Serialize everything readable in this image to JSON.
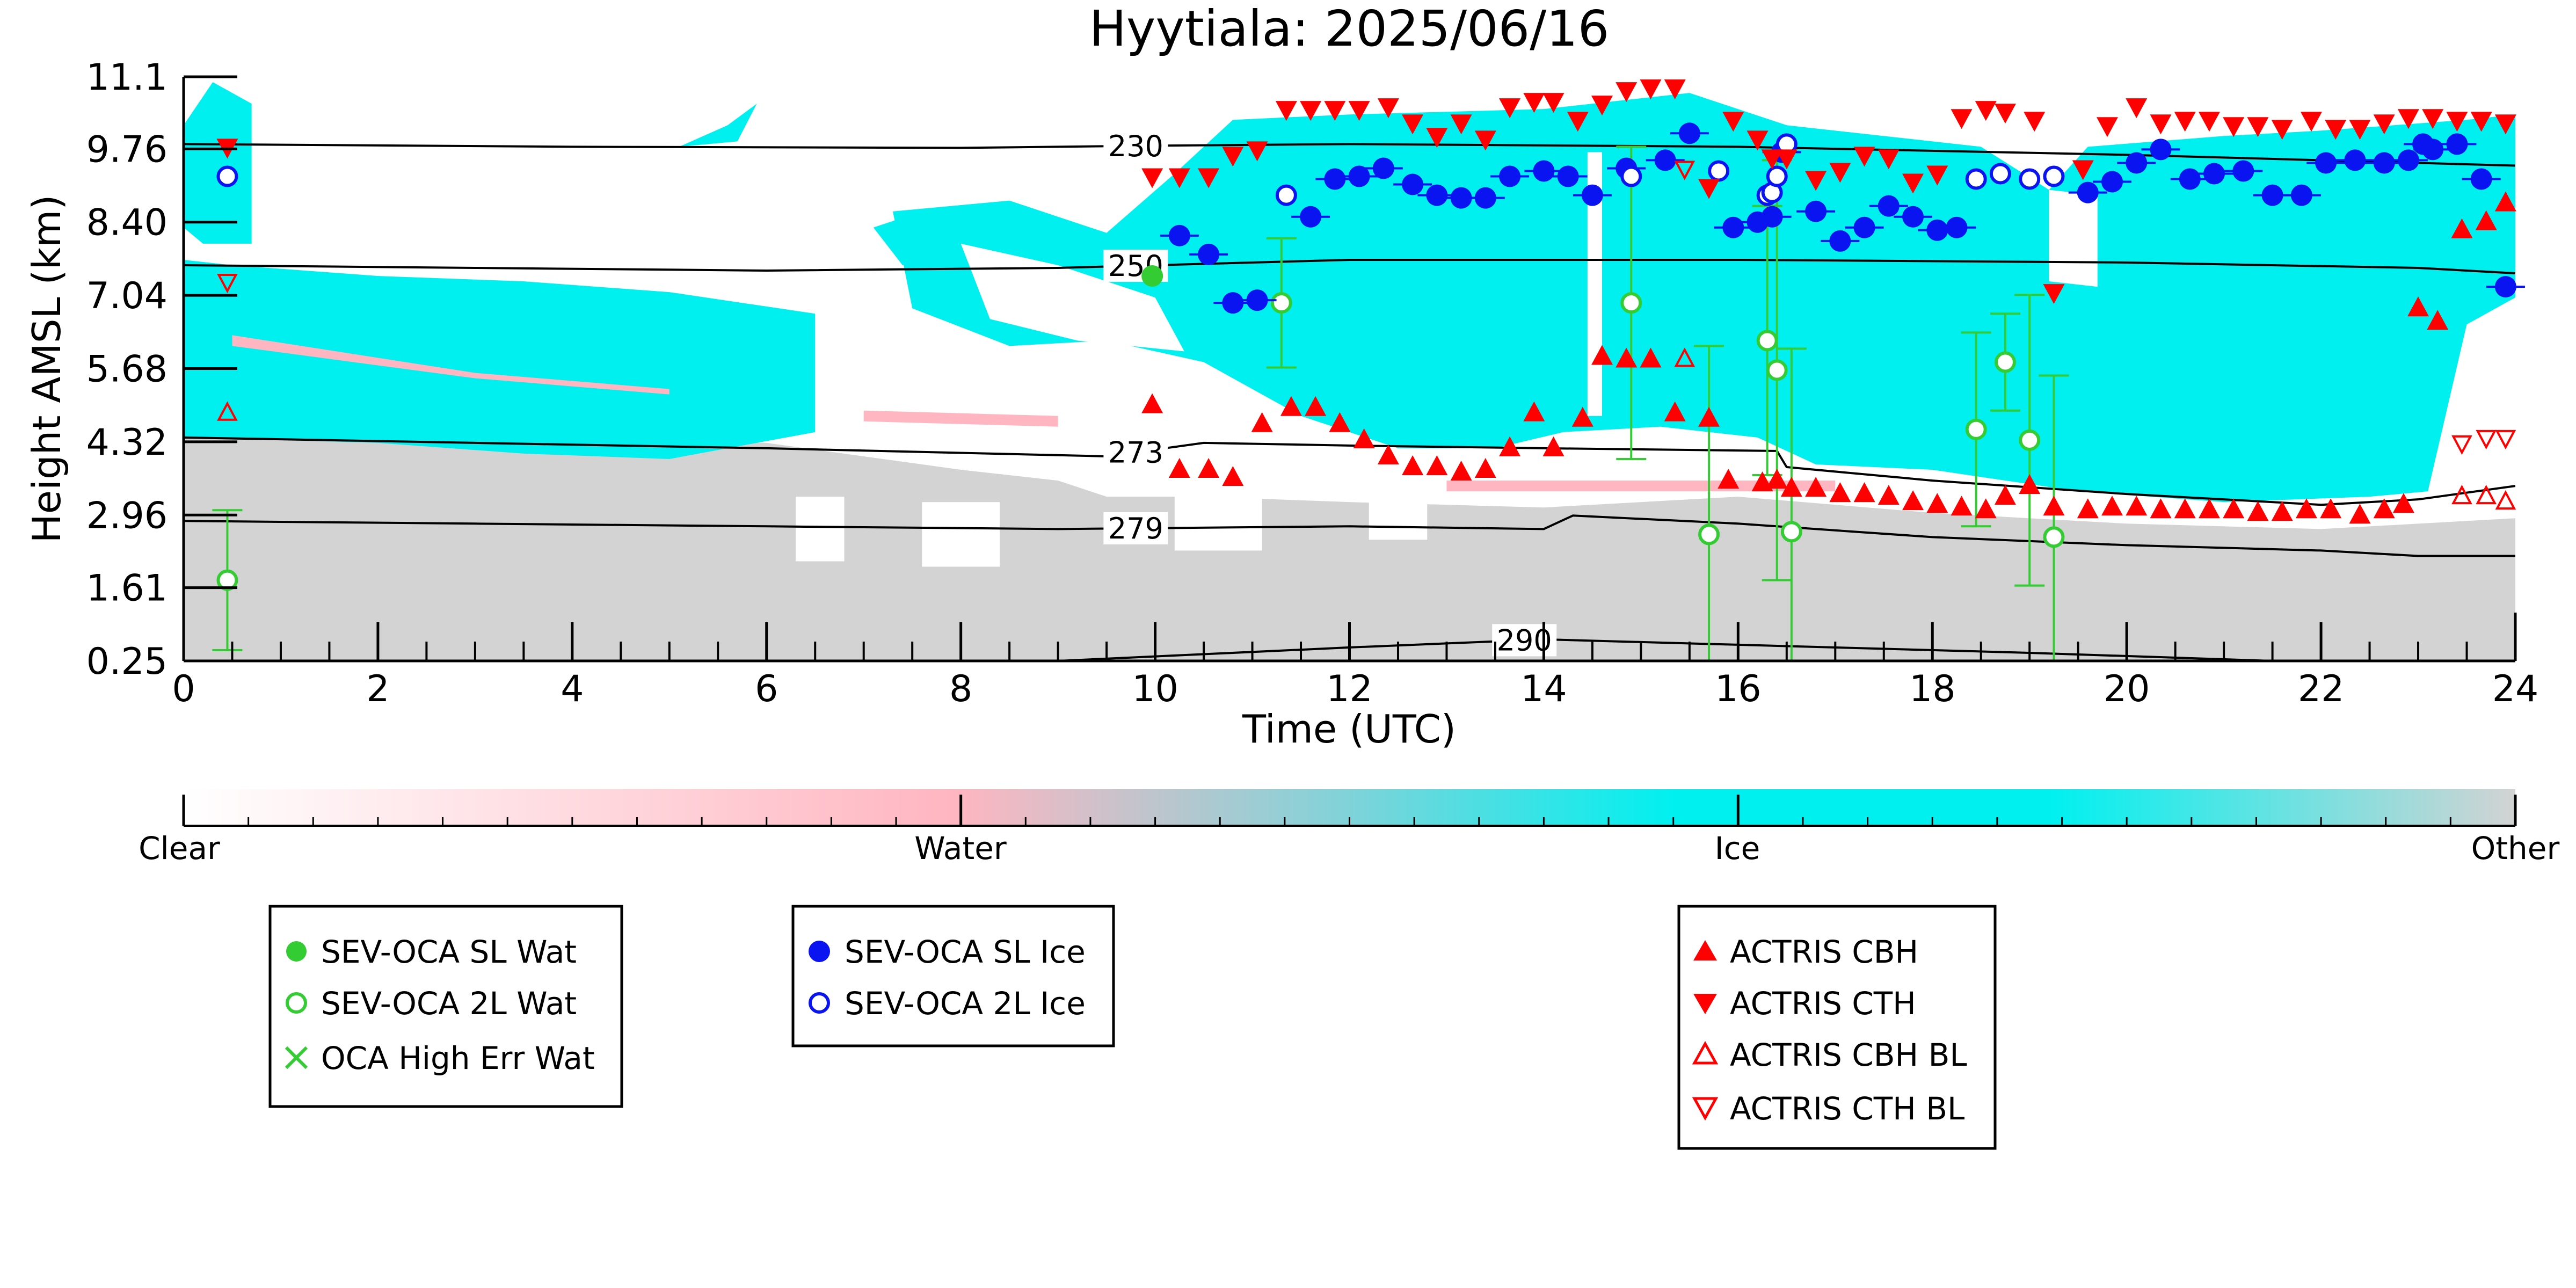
{
  "chart_data": {
    "type": "scatter",
    "title": "Hyytiala: 2025/06/16",
    "xlabel": "Time (UTC)",
    "ylabel": "Height AMSL (km)",
    "xlim": [
      0,
      24
    ],
    "ylim": [
      0.25,
      11.1
    ],
    "x_ticks": [
      0,
      2,
      4,
      6,
      8,
      10,
      12,
      14,
      16,
      18,
      20,
      22,
      24
    ],
    "x_tick_labels": [
      "0",
      "2",
      "4",
      "6",
      "8",
      "10",
      "12",
      "14",
      "16",
      "18",
      "20",
      "22",
      "24"
    ],
    "y_ticks": [
      0.25,
      1.61,
      2.96,
      4.32,
      5.68,
      7.04,
      8.4,
      9.76,
      11.1
    ],
    "y_tick_labels": [
      "0.25",
      "1.61",
      "2.96",
      "4.32",
      "5.68",
      "7.04",
      "8.40",
      "9.76",
      "11.1"
    ],
    "colorbar": {
      "labels": [
        "Clear",
        "Water",
        "Ice",
        "Other"
      ],
      "colors": {
        "clear": "#ffffff",
        "water": "#ffb6c1",
        "ice": "#00f0f0",
        "other": "#d3d3d3"
      }
    },
    "isotherms": [
      {
        "label": "230",
        "x": [
          0,
          4,
          8,
          10,
          12,
          16,
          20,
          24
        ],
        "y": [
          9.85,
          9.8,
          9.78,
          9.82,
          9.85,
          9.8,
          9.65,
          9.45
        ]
      },
      {
        "label": "250",
        "x": [
          0,
          3,
          6,
          9,
          12,
          16,
          20,
          23,
          24
        ],
        "y": [
          7.6,
          7.55,
          7.5,
          7.55,
          7.7,
          7.7,
          7.65,
          7.55,
          7.45
        ]
      },
      {
        "label": "273",
        "x": [
          0,
          3,
          6,
          9.5,
          10.5,
          12,
          14,
          16.4,
          16.5,
          18,
          20,
          22,
          23,
          24
        ],
        "y": [
          4.4,
          4.3,
          4.2,
          4.05,
          4.3,
          4.25,
          4.2,
          4.15,
          3.85,
          3.6,
          3.35,
          3.15,
          3.25,
          3.5
        ]
      },
      {
        "label": "279",
        "x": [
          0,
          3,
          6,
          9,
          12,
          14,
          14.3,
          16,
          18,
          20,
          22,
          23,
          24
        ],
        "y": [
          2.85,
          2.8,
          2.75,
          2.7,
          2.75,
          2.7,
          2.95,
          2.8,
          2.55,
          2.4,
          2.3,
          2.2,
          2.2
        ]
      },
      {
        "label": "290",
        "x": [
          9,
          12,
          14,
          16,
          19,
          21.5
        ],
        "y": [
          0.25,
          0.5,
          0.65,
          0.55,
          0.4,
          0.25
        ]
      }
    ],
    "series": [
      {
        "name": "SEV-OCA SL Wat",
        "marker": "filled-circle",
        "color": "#33cc33",
        "x": [
          9.97
        ],
        "y": [
          7.4
        ]
      },
      {
        "name": "SEV-OCA 2L Wat",
        "marker": "open-circle",
        "color": "#33cc33",
        "x": [
          0.45,
          11.3,
          14.9,
          15.7,
          16.3,
          16.4,
          16.55,
          18.45,
          18.75,
          19.0,
          19.25
        ],
        "y": [
          1.75,
          6.9,
          6.9,
          2.6,
          6.2,
          5.65,
          2.65,
          4.55,
          5.8,
          4.35,
          2.55
        ],
        "err": [
          1.3,
          1.2,
          2.9,
          3.5,
          2.5,
          3.9,
          3.4,
          1.8,
          0.9,
          2.7,
          3.0
        ]
      },
      {
        "name": "OCA High Err Wat",
        "marker": "x",
        "color": "#33cc33",
        "x": [],
        "y": []
      },
      {
        "name": "SEV-OCA SL Ice",
        "marker": "filled-circle",
        "color": "#0a14f0",
        "x": [
          10.25,
          10.55,
          10.8,
          11.05,
          11.6,
          11.85,
          12.1,
          12.35,
          12.65,
          12.9,
          13.15,
          13.4,
          13.65,
          14.0,
          14.25,
          14.5,
          14.85,
          15.25,
          15.5,
          15.95,
          16.2,
          16.35,
          16.45,
          16.8,
          17.05,
          17.3,
          17.55,
          17.8,
          18.05,
          18.25,
          19.6,
          19.85,
          20.1,
          20.35,
          20.65,
          20.9,
          21.2,
          21.5,
          21.8,
          22.05,
          22.35,
          22.65,
          22.9,
          23.05,
          23.15,
          23.4,
          23.65,
          23.9
        ],
        "y": [
          8.15,
          7.8,
          6.9,
          6.95,
          8.5,
          9.2,
          9.25,
          9.4,
          9.1,
          8.9,
          8.85,
          8.85,
          9.25,
          9.35,
          9.25,
          8.9,
          9.4,
          9.55,
          10.05,
          8.3,
          8.4,
          8.5,
          9.7,
          8.6,
          8.05,
          8.3,
          8.7,
          8.5,
          8.25,
          8.3,
          8.95,
          9.15,
          9.5,
          9.75,
          9.2,
          9.3,
          9.35,
          8.9,
          8.9,
          9.5,
          9.55,
          9.5,
          9.55,
          9.85,
          9.75,
          9.85,
          9.2,
          7.2
        ]
      },
      {
        "name": "SEV-OCA 2L Ice",
        "marker": "open-circle",
        "color": "#0a14f0",
        "x": [
          0.45,
          11.35,
          14.9,
          15.8,
          16.3,
          16.35,
          16.4,
          16.5,
          18.45,
          18.7,
          19.0,
          19.25
        ],
        "y": [
          9.25,
          8.9,
          9.25,
          9.35,
          8.9,
          8.95,
          9.25,
          9.85,
          9.2,
          9.3,
          9.2,
          9.25
        ]
      },
      {
        "name": "ACTRIS CBH",
        "marker": "triangle-up",
        "color": "#ff0000",
        "x": [
          9.97,
          10.25,
          10.55,
          10.8,
          11.1,
          11.4,
          11.65,
          11.9,
          12.15,
          12.4,
          12.65,
          12.9,
          13.15,
          13.4,
          13.65,
          13.9,
          14.1,
          14.4,
          14.6,
          14.85,
          15.1,
          15.35,
          15.7,
          15.9,
          16.25,
          16.4,
          16.55,
          16.8,
          17.05,
          17.3,
          17.55,
          17.8,
          18.05,
          18.3,
          18.55,
          18.75,
          19.0,
          19.25,
          19.6,
          19.85,
          20.1,
          20.35,
          20.6,
          20.85,
          21.1,
          21.35,
          21.6,
          21.85,
          22.1,
          22.4,
          22.65,
          22.85,
          23.0,
          23.2,
          23.45,
          23.7,
          23.9
        ],
        "y": [
          5.0,
          3.8,
          3.8,
          3.65,
          4.65,
          4.95,
          4.95,
          4.65,
          4.35,
          4.05,
          3.85,
          3.85,
          3.75,
          3.8,
          4.2,
          4.85,
          4.2,
          4.75,
          5.9,
          5.85,
          5.85,
          4.85,
          4.75,
          3.6,
          3.55,
          3.6,
          3.45,
          3.45,
          3.35,
          3.35,
          3.3,
          3.2,
          3.15,
          3.1,
          3.05,
          3.3,
          3.5,
          3.1,
          3.05,
          3.1,
          3.1,
          3.05,
          3.05,
          3.05,
          3.05,
          3.0,
          3.0,
          3.05,
          3.05,
          2.95,
          3.05,
          3.15,
          6.8,
          6.55,
          8.25,
          8.4,
          8.75
        ]
      },
      {
        "name": "ACTRIS CTH",
        "marker": "triangle-down",
        "color": "#ff0000",
        "x": [
          0.45,
          9.97,
          10.25,
          10.55,
          10.8,
          11.05,
          11.35,
          11.6,
          11.85,
          12.1,
          12.4,
          12.65,
          12.9,
          13.15,
          13.4,
          13.65,
          13.9,
          14.1,
          14.35,
          14.6,
          14.85,
          15.1,
          15.35,
          15.7,
          15.95,
          16.2,
          16.35,
          16.5,
          16.8,
          17.05,
          17.3,
          17.55,
          17.8,
          18.05,
          18.3,
          18.55,
          18.75,
          19.05,
          19.25,
          19.55,
          19.8,
          20.1,
          20.35,
          20.6,
          20.85,
          21.1,
          21.35,
          21.6,
          21.9,
          22.15,
          22.4,
          22.65,
          22.9,
          23.15,
          23.4,
          23.65,
          23.9
        ],
        "y": [
          9.8,
          9.25,
          9.25,
          9.25,
          9.65,
          9.75,
          10.5,
          10.5,
          10.5,
          10.5,
          10.55,
          10.25,
          10.0,
          10.25,
          9.95,
          10.55,
          10.65,
          10.65,
          10.3,
          10.6,
          10.85,
          10.9,
          10.9,
          9.05,
          10.3,
          9.95,
          9.6,
          9.6,
          9.2,
          9.35,
          9.65,
          9.6,
          9.15,
          9.3,
          10.35,
          10.5,
          10.45,
          10.3,
          7.1,
          9.4,
          10.2,
          10.55,
          10.25,
          10.3,
          10.3,
          10.2,
          10.2,
          10.15,
          10.3,
          10.15,
          10.15,
          10.25,
          10.35,
          10.35,
          10.3,
          10.3,
          10.25
        ]
      },
      {
        "name": "ACTRIS CBH BL",
        "marker": "open-triangle-up",
        "color": "#ff0000",
        "x": [
          0.45,
          15.45,
          23.45,
          23.7,
          23.9
        ],
        "y": [
          4.85,
          5.85,
          3.3,
          3.3,
          3.2
        ]
      },
      {
        "name": "ACTRIS CTH BL",
        "marker": "open-triangle-down",
        "color": "#ff0000",
        "x": [
          0.45,
          15.45,
          23.45,
          23.7,
          23.9
        ],
        "y": [
          7.3,
          9.4,
          4.3,
          4.4,
          4.4
        ]
      }
    ],
    "legends": [
      {
        "entries": [
          "SEV-OCA SL Wat",
          "SEV-OCA 2L Wat",
          "OCA High Err Wat"
        ]
      },
      {
        "entries": [
          "SEV-OCA SL Ice",
          "SEV-OCA 2L Ice"
        ]
      },
      {
        "entries": [
          "ACTRIS CBH",
          "ACTRIS CTH",
          "ACTRIS CBH BL",
          "ACTRIS CTH BL"
        ]
      }
    ]
  }
}
